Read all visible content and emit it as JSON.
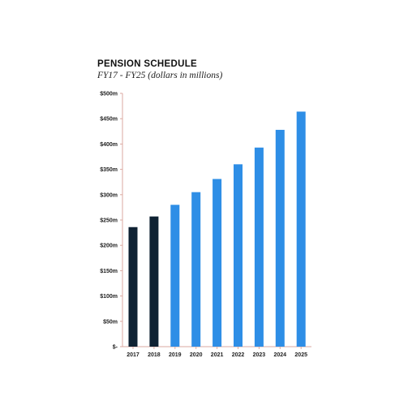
{
  "chart_data": {
    "type": "bar",
    "title": "PENSION SCHEDULE",
    "subtitle": "FY17 - FY25 (dollars in millions)",
    "xlabel": "",
    "ylabel": "",
    "categories": [
      "2017",
      "2018",
      "2019",
      "2020",
      "2021",
      "2022",
      "2023",
      "2024",
      "2025"
    ],
    "values": [
      236,
      257,
      280,
      305,
      331,
      360,
      393,
      428,
      464
    ],
    "ylim": [
      0,
      500
    ],
    "y_ticks": [
      0,
      50,
      100,
      150,
      200,
      250,
      300,
      350,
      400,
      450,
      500
    ],
    "y_tick_labels": [
      "$-",
      "$50m",
      "$100m",
      "$150m",
      "$200m",
      "$250m",
      "$300m",
      "$350m",
      "$400m",
      "$450m",
      "$500m"
    ],
    "grid": false,
    "legend": "none",
    "colors": {
      "actual": "#0f2233",
      "projected": "#2e8ee6",
      "axis": "#dba9a0"
    },
    "bar_color_groups": [
      "actual",
      "actual",
      "projected",
      "projected",
      "projected",
      "projected",
      "projected",
      "projected",
      "projected"
    ]
  }
}
